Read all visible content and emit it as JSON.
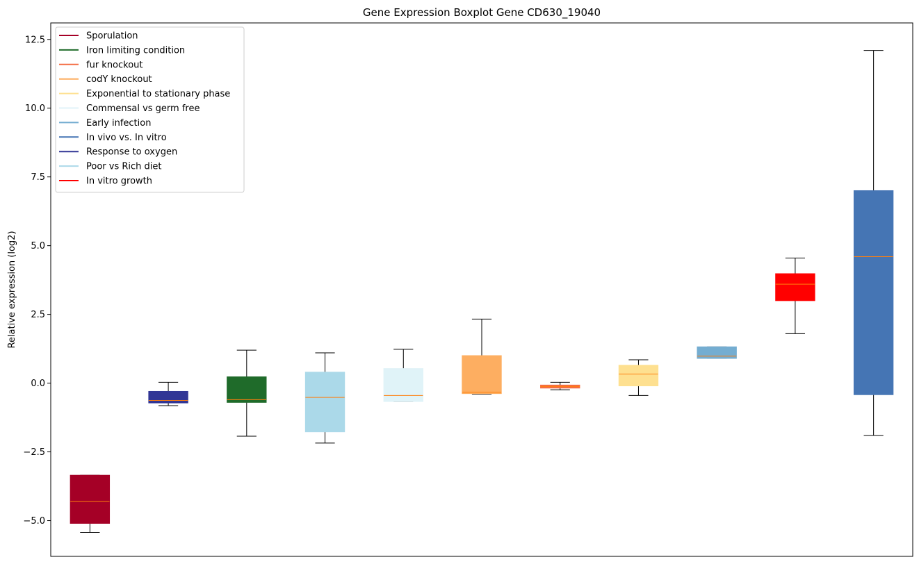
{
  "chart_data": {
    "type": "boxplot",
    "title": "Gene Expression Boxplot Gene CD630_19040",
    "xlabel": "",
    "ylabel": "Relative expression (log2)",
    "ylim": [
      -6.3,
      13.1
    ],
    "yticks": [
      -5.0,
      -2.5,
      0.0,
      2.5,
      5.0,
      7.5,
      10.0,
      12.5
    ],
    "ytick_labels": [
      "−5.0",
      "−2.5",
      "0.0",
      "2.5",
      "5.0",
      "7.5",
      "10.0",
      "12.5"
    ],
    "median_color": "#ff7f0e",
    "whisker_color": "#000000",
    "legend": [
      {
        "label": "Sporulation",
        "color": "#a50026"
      },
      {
        "label": "Iron limiting condition",
        "color": "#1f6b2a"
      },
      {
        "label": "fur knockout",
        "color": "#f46d43"
      },
      {
        "label": "codY knockout",
        "color": "#fdae61"
      },
      {
        "label": "Exponential to stationary phase",
        "color": "#fee090"
      },
      {
        "label": "Commensal vs germ free",
        "color": "#e0f3f8"
      },
      {
        "label": "Early infection",
        "color": "#74add1"
      },
      {
        "label": "In vivo vs. In vitro",
        "color": "#4575b4"
      },
      {
        "label": "Response to oxygen",
        "color": "#313695"
      },
      {
        "label": "Poor vs Rich diet",
        "color": "#abd9e9"
      },
      {
        "label": "In vitro growth",
        "color": "#ff0000"
      }
    ],
    "boxes": [
      {
        "group": "Sporulation",
        "color": "#a50026",
        "whislo": -5.43,
        "q1": -5.1,
        "median": -4.3,
        "q3": -3.35,
        "whishi": -3.35
      },
      {
        "group": "Response to oxygen",
        "color": "#313695",
        "whislo": -0.82,
        "q1": -0.72,
        "median": -0.63,
        "q3": -0.3,
        "whishi": 0.03
      },
      {
        "group": "Iron limiting condition",
        "color": "#1f6b2a",
        "whislo": -1.93,
        "q1": -0.7,
        "median": -0.6,
        "q3": 0.23,
        "whishi": 1.2
      },
      {
        "group": "Poor vs Rich diet",
        "color": "#abd9e9",
        "whislo": -2.18,
        "q1": -1.77,
        "median": -0.52,
        "q3": 0.4,
        "whishi": 1.1
      },
      {
        "group": "Commensal vs germ free",
        "color": "#e0f3f8",
        "whislo": -0.67,
        "q1": -0.67,
        "median": -0.45,
        "q3": 0.53,
        "whishi": 1.23
      },
      {
        "group": "codY knockout",
        "color": "#fdae61",
        "whislo": -0.4,
        "q1": -0.38,
        "median": -0.33,
        "q3": 1.0,
        "whishi": 2.33
      },
      {
        "group": "fur knockout",
        "color": "#f46d43",
        "whislo": -0.24,
        "q1": -0.18,
        "median": -0.12,
        "q3": -0.07,
        "whishi": 0.03
      },
      {
        "group": "Exponential to stationary phase",
        "color": "#fee090",
        "whislo": -0.45,
        "q1": -0.1,
        "median": 0.33,
        "q3": 0.65,
        "whishi": 0.85
      },
      {
        "group": "Early infection",
        "color": "#74add1",
        "whislo": 0.9,
        "q1": 0.9,
        "median": 0.98,
        "q3": 1.32,
        "whishi": 1.32
      },
      {
        "group": "In vitro growth",
        "color": "#ff0000",
        "whislo": 1.8,
        "q1": 3.0,
        "median": 3.6,
        "q3": 3.98,
        "whishi": 4.55
      },
      {
        "group": "In vivo vs. In vitro",
        "color": "#4575b4",
        "whislo": -1.9,
        "q1": -0.42,
        "median": 4.6,
        "q3": 7.0,
        "whishi": 12.1
      }
    ]
  }
}
